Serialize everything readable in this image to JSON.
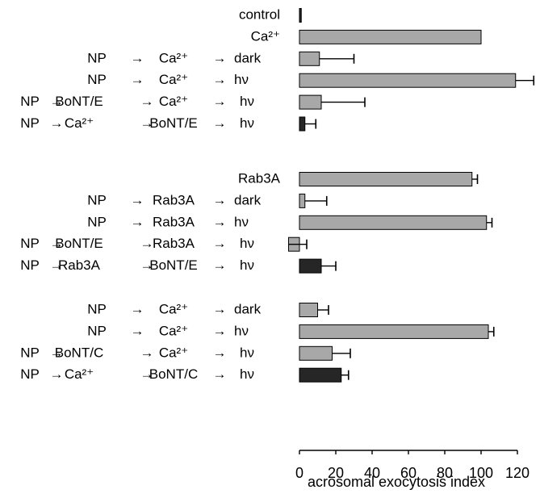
{
  "chart_data": {
    "type": "bar",
    "orientation": "horizontal",
    "xlabel": "acrosomal exocytosis index",
    "xlim": [
      0,
      120
    ],
    "x_ticks": [
      0,
      20,
      40,
      60,
      80,
      100,
      120
    ],
    "grid": false,
    "legend": "none",
    "colors": {
      "gray": "#a8a8a8",
      "black": "#262626",
      "stroke": "#000000"
    },
    "arrow": "→",
    "groups": [
      {
        "rows": [
          {
            "label": [
              "control"
            ],
            "value": 1,
            "error": 0,
            "color": "black"
          },
          {
            "label": [
              "Ca²⁺"
            ],
            "value": 100,
            "error": 0,
            "color": "gray"
          },
          {
            "label": [
              "NP",
              "Ca²⁺",
              "dark"
            ],
            "value": 11,
            "error": 19,
            "color": "gray"
          },
          {
            "label": [
              "NP",
              "Ca²⁺",
              "hν"
            ],
            "value": 119,
            "error": 10,
            "color": "gray"
          },
          {
            "label": [
              "NP",
              "BoNT/E",
              "Ca²⁺",
              "hν"
            ],
            "value": 12,
            "error": 24,
            "color": "gray"
          },
          {
            "label": [
              "NP",
              "Ca²⁺",
              "BoNT/E",
              "hν"
            ],
            "value": 3,
            "error": 6,
            "color": "black"
          }
        ]
      },
      {
        "rows": [
          {
            "label": [
              "Rab3A"
            ],
            "value": 95,
            "error": 3,
            "color": "gray"
          },
          {
            "label": [
              "NP",
              "Rab3A",
              "dark"
            ],
            "value": 3,
            "error": 12,
            "color": "gray"
          },
          {
            "label": [
              "NP",
              "Rab3A",
              "hν"
            ],
            "value": 103,
            "error": 3,
            "color": "gray"
          },
          {
            "label": [
              "NP",
              "BoNT/E",
              "Rab3A",
              "hν"
            ],
            "value": -6,
            "error": 10,
            "color": "gray"
          },
          {
            "label": [
              "NP",
              "Rab3A",
              "BoNT/E",
              "hν"
            ],
            "value": 12,
            "error": 8,
            "color": "black"
          }
        ]
      },
      {
        "rows": [
          {
            "label": [
              "NP",
              "Ca²⁺",
              "dark"
            ],
            "value": 10,
            "error": 6,
            "color": "gray"
          },
          {
            "label": [
              "NP",
              "Ca²⁺",
              "hν"
            ],
            "value": 104,
            "error": 3,
            "color": "gray"
          },
          {
            "label": [
              "NP",
              "BoNT/C",
              "Ca²⁺",
              "hν"
            ],
            "value": 18,
            "error": 10,
            "color": "gray"
          },
          {
            "label": [
              "NP",
              "Ca²⁺",
              "BoNT/C",
              "hν"
            ],
            "value": 23,
            "error": 4,
            "color": "black"
          }
        ]
      }
    ]
  }
}
